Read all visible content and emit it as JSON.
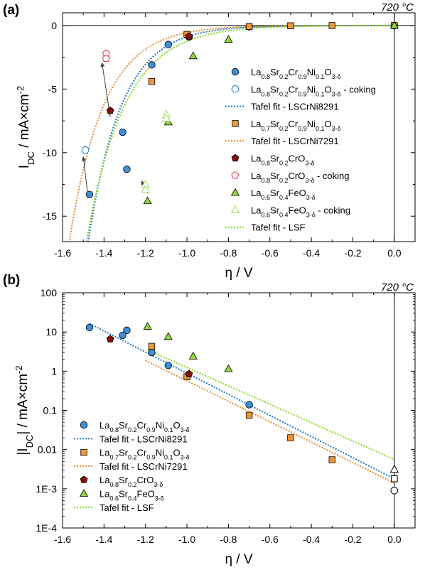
{
  "colors": {
    "blue": "#1f77c9",
    "blue_fill": "#3d8fd6",
    "orange": "#e58a2b",
    "orange_fill": "#f0953a",
    "red": "#8b0d0d",
    "red_open": "#e0384a",
    "green": "#7fd81e",
    "green_fill": "#8fd83a",
    "green_open": "#a8e060",
    "arrow": "#404040"
  },
  "chart_data": [
    {
      "type": "scatter",
      "panel_label": "(a)",
      "temperature_label": "720 °C",
      "xlabel": "η / V",
      "ylabel_main": "I",
      "ylabel_sub": "DC",
      "ylabel_rest": " / mA×cm",
      "ylabel_sup": "-2",
      "xlim": [
        -1.6,
        0.1
      ],
      "ylim": [
        -17,
        1
      ],
      "y_scale": "linear",
      "xticks": [
        "-1.6",
        "-1.4",
        "-1.2",
        "-1.0",
        "-0.8",
        "-0.6",
        "-0.4",
        "-0.2",
        "0.0"
      ],
      "yticks": [
        "0",
        "-5",
        "-10",
        "-15"
      ],
      "vertical_line_at_x": 0.0,
      "horizontal_line_at_y": 0.0,
      "series": [
        {
          "name": "La0.8Sr0.2Cr0.9Ni0.1O3-δ",
          "marker": "circle",
          "style": "filled",
          "color": "blue",
          "x": [
            -1.47,
            -1.31,
            -1.29,
            -1.17,
            -1.09,
            -0.99,
            -0.7,
            0.0
          ],
          "y": [
            -13.3,
            -8.4,
            -11.3,
            -3.1,
            -1.5,
            -0.9,
            -0.1,
            0.0
          ]
        },
        {
          "name": "La0.8Sr0.2Cr0.9Ni0.1O3-δ - coking",
          "marker": "circle",
          "style": "open",
          "color": "blue",
          "x": [
            -1.49
          ],
          "y": [
            -9.8
          ]
        },
        {
          "name": "Tafel fit - LSCrNi8291",
          "kind": "tafel",
          "color": "blue",
          "a": 0.0018,
          "b": 6.2
        },
        {
          "name": "La0.7Sr0.2Cr0.9Ni0.1O3-δ",
          "marker": "square",
          "style": "filled",
          "color": "orange",
          "x": [
            -1.17,
            -1.0,
            -0.7,
            -0.5,
            -0.3,
            0.0
          ],
          "y": [
            -4.4,
            -0.7,
            -0.08,
            -0.02,
            -0.005,
            0.0
          ]
        },
        {
          "name": "Tafel fit - LSCrNi7291",
          "kind": "tafel",
          "color": "orange",
          "a": 0.0014,
          "b": 6.0
        },
        {
          "name": "La0.8Sr0.2CrO3-δ",
          "marker": "pentagon",
          "style": "filled",
          "color": "red",
          "x": [
            -1.37,
            -0.99
          ],
          "y": [
            -6.7,
            -0.85
          ]
        },
        {
          "name": "La0.8Sr0.2CrO3-δ - coking",
          "marker": "pentagon",
          "style": "open",
          "color": "red_open",
          "x": [
            -1.39,
            -1.39
          ],
          "y": [
            -2.2,
            -2.6
          ]
        },
        {
          "name": "La0.6Sr0.4FeO3-δ",
          "marker": "triangle",
          "style": "filled",
          "color": "green",
          "x": [
            -1.19,
            -1.09,
            -0.97,
            -0.8,
            0.0
          ],
          "y": [
            -13.8,
            -7.6,
            -2.4,
            -1.1,
            0.0
          ]
        },
        {
          "name": "La0.6Sr0.4FeO3-δ - coking",
          "marker": "triangle",
          "style": "open",
          "color": "green_open",
          "x": [
            -1.2,
            -1.2,
            -1.1,
            -1.1
          ],
          "y": [
            -12.5,
            -12.9,
            -7.0,
            -7.3
          ]
        },
        {
          "name": "Tafel fit - LSF",
          "kind": "tafel",
          "color": "green",
          "a": 0.0056,
          "b": 5.4
        }
      ],
      "arrows": [
        {
          "from": [
            -1.48,
            -13.1
          ],
          "to": [
            -1.5,
            -10.3
          ]
        },
        {
          "from": [
            -1.37,
            -7.2
          ],
          "to": [
            -1.41,
            -2.9
          ]
        },
        {
          "from": [
            -1.19,
            -13.2
          ],
          "to": [
            -1.22,
            -12.2
          ]
        }
      ],
      "legend": {
        "placement": "right",
        "entries": [
          {
            "series": 0,
            "parts": [
              [
                "La",
                ""
              ],
              [
                "0.8",
                "sub"
              ],
              [
                "Sr",
                ""
              ],
              [
                "0.2",
                "sub"
              ],
              [
                "Cr",
                ""
              ],
              [
                "0.9",
                "sub"
              ],
              [
                "Ni",
                ""
              ],
              [
                "0.1",
                "sub"
              ],
              [
                "O",
                ""
              ],
              [
                "3-δ",
                "sub"
              ]
            ]
          },
          {
            "series": 1,
            "parts": [
              [
                "La",
                ""
              ],
              [
                "0.8",
                "sub"
              ],
              [
                "Sr",
                ""
              ],
              [
                "0.2",
                "sub"
              ],
              [
                "Cr",
                ""
              ],
              [
                "0.9",
                "sub"
              ],
              [
                "Ni",
                ""
              ],
              [
                "0.1",
                "sub"
              ],
              [
                "O",
                ""
              ],
              [
                "3-δ",
                "sub"
              ],
              [
                " - coking",
                ""
              ]
            ]
          },
          {
            "series": 2,
            "parts": [
              [
                "Tafel fit - LSCrNi8291",
                ""
              ]
            ]
          },
          {
            "series": 3,
            "parts": [
              [
                "La",
                ""
              ],
              [
                "0.7",
                "sub"
              ],
              [
                "Sr",
                ""
              ],
              [
                "0.2",
                "sub"
              ],
              [
                "Cr",
                ""
              ],
              [
                "0.9",
                "sub"
              ],
              [
                "Ni",
                ""
              ],
              [
                "0.1",
                "sub"
              ],
              [
                "O",
                ""
              ],
              [
                "3-δ",
                "sub"
              ]
            ]
          },
          {
            "series": 4,
            "parts": [
              [
                "Tafel fit - LSCrNi7291",
                ""
              ]
            ]
          },
          {
            "series": 5,
            "parts": [
              [
                "La",
                ""
              ],
              [
                "0.8",
                "sub"
              ],
              [
                "Sr",
                ""
              ],
              [
                "0.2",
                "sub"
              ],
              [
                "CrO",
                ""
              ],
              [
                "3-δ",
                "sub"
              ]
            ]
          },
          {
            "series": 6,
            "parts": [
              [
                "La",
                ""
              ],
              [
                "0.8",
                "sub"
              ],
              [
                "Sr",
                ""
              ],
              [
                "0.2",
                "sub"
              ],
              [
                "CrO",
                ""
              ],
              [
                "3-δ",
                "sub"
              ],
              [
                " - coking",
                ""
              ]
            ]
          },
          {
            "series": 7,
            "parts": [
              [
                "La",
                ""
              ],
              [
                "0.6",
                "sub"
              ],
              [
                "Sr",
                ""
              ],
              [
                "0.4",
                "sub"
              ],
              [
                "FeO",
                ""
              ],
              [
                "3-δ",
                "sub"
              ]
            ]
          },
          {
            "series": 8,
            "parts": [
              [
                "La",
                ""
              ],
              [
                "0.6",
                "sub"
              ],
              [
                "Sr",
                ""
              ],
              [
                "0.4",
                "sub"
              ],
              [
                "FeO",
                ""
              ],
              [
                "3-δ",
                "sub"
              ],
              [
                " - coking",
                ""
              ]
            ]
          },
          {
            "series": 9,
            "parts": [
              [
                "Tafel fit - LSF",
                ""
              ]
            ]
          }
        ]
      }
    },
    {
      "type": "scatter",
      "panel_label": "(b)",
      "temperature_label": "720 °C",
      "xlabel": "η / V",
      "ylabel_main": "|I",
      "ylabel_sub": "DC",
      "ylabel_rest": "| / mA×cm",
      "ylabel_sup": "-2",
      "xlim": [
        -1.6,
        0.1
      ],
      "ylim": [
        0.0001,
        100
      ],
      "y_scale": "log",
      "xticks": [
        "-1.6",
        "-1.4",
        "-1.2",
        "-1.0",
        "-0.8",
        "-0.6",
        "-0.4",
        "-0.2",
        "0.0"
      ],
      "yticks": [
        "100",
        "10",
        "1",
        "0.1",
        "0.01",
        "1E-3",
        "1E-4"
      ],
      "vertical_line_at_x": 0.0,
      "series": [
        {
          "name": "La0.8Sr0.2Cr0.9Ni0.1O3-δ",
          "marker": "circle",
          "style": "filled",
          "color": "blue",
          "x": [
            -1.47,
            -1.31,
            -1.29,
            -1.17,
            -1.09,
            -0.7
          ],
          "y": [
            13.0,
            8.2,
            11.0,
            3.0,
            1.4,
            0.14
          ]
        },
        {
          "name": "Tafel fit - LSCrNi8291",
          "kind": "tafel",
          "color": "blue",
          "a": 0.0018,
          "b": 6.2,
          "x_start": -1.47
        },
        {
          "name": "La0.7Sr0.2Cr0.9Ni0.1O3-δ",
          "marker": "square",
          "style": "filled",
          "color": "orange",
          "x": [
            -1.17,
            -1.0,
            -0.7,
            -0.5,
            -0.3
          ],
          "y": [
            4.3,
            0.72,
            0.075,
            0.02,
            0.0055
          ]
        },
        {
          "name": "Tafel fit - LSCrNi7291",
          "kind": "tafel",
          "color": "orange",
          "a": 0.0014,
          "b": 6.0,
          "x_start": -1.2
        },
        {
          "name": "La0.8Sr0.2CrO3-δ",
          "marker": "pentagon",
          "style": "filled",
          "color": "red",
          "x": [
            -1.37,
            -0.99
          ],
          "y": [
            6.6,
            0.85
          ]
        },
        {
          "name": "La0.6Sr0.4FeO3-δ",
          "marker": "triangle",
          "style": "filled",
          "color": "green",
          "x": [
            -1.19,
            -1.09,
            -0.97,
            -0.8
          ],
          "y": [
            13.8,
            7.6,
            2.4,
            1.15
          ]
        },
        {
          "name": "Tafel fit - LSF",
          "kind": "tafel",
          "color": "green",
          "a": 0.0056,
          "b": 5.4,
          "x_start": -1.19
        },
        {
          "name": "",
          "marker": "circle",
          "style": "open",
          "color": "black",
          "x": [
            0.0
          ],
          "y": [
            0.0009
          ]
        },
        {
          "name": "",
          "marker": "square",
          "style": "open",
          "color": "black",
          "x": [
            0.0
          ],
          "y": [
            0.0018
          ]
        },
        {
          "name": "",
          "marker": "triangle",
          "style": "open",
          "color": "black",
          "x": [
            0.0
          ],
          "y": [
            0.0031
          ]
        }
      ],
      "legend": {
        "placement": "bottom-left",
        "entries": [
          {
            "series": 0,
            "parts": [
              [
                "La",
                ""
              ],
              [
                "0.8",
                "sub"
              ],
              [
                "Sr",
                ""
              ],
              [
                "0.2",
                "sub"
              ],
              [
                "Cr",
                ""
              ],
              [
                "0.9",
                "sub"
              ],
              [
                "Ni",
                ""
              ],
              [
                "0.1",
                "sub"
              ],
              [
                "O",
                ""
              ],
              [
                "3-δ",
                "sub"
              ]
            ]
          },
          {
            "series": 1,
            "parts": [
              [
                "Tafel fit - LSCrNi8291",
                ""
              ]
            ]
          },
          {
            "series": 2,
            "parts": [
              [
                "La",
                ""
              ],
              [
                "0.7",
                "sub"
              ],
              [
                "Sr",
                ""
              ],
              [
                "0.2",
                "sub"
              ],
              [
                "Cr",
                ""
              ],
              [
                "0.9",
                "sub"
              ],
              [
                "Ni",
                ""
              ],
              [
                "0.1",
                "sub"
              ],
              [
                "O",
                ""
              ],
              [
                "3-δ",
                "sub"
              ]
            ]
          },
          {
            "series": 3,
            "parts": [
              [
                "Tafel fit - LSCrNi7291",
                ""
              ]
            ]
          },
          {
            "series": 4,
            "parts": [
              [
                "La",
                ""
              ],
              [
                "0.8",
                "sub"
              ],
              [
                "Sr",
                ""
              ],
              [
                "0.2",
                "sub"
              ],
              [
                "CrO",
                ""
              ],
              [
                "3-δ",
                "sub"
              ]
            ]
          },
          {
            "series": 5,
            "parts": [
              [
                "La",
                ""
              ],
              [
                "0.6",
                "sub"
              ],
              [
                "Sr",
                ""
              ],
              [
                "0.4",
                "sub"
              ],
              [
                "FeO",
                ""
              ],
              [
                "3-δ",
                "sub"
              ]
            ]
          },
          {
            "series": 6,
            "parts": [
              [
                "Tafel fit - LSF",
                ""
              ]
            ]
          }
        ]
      }
    }
  ]
}
